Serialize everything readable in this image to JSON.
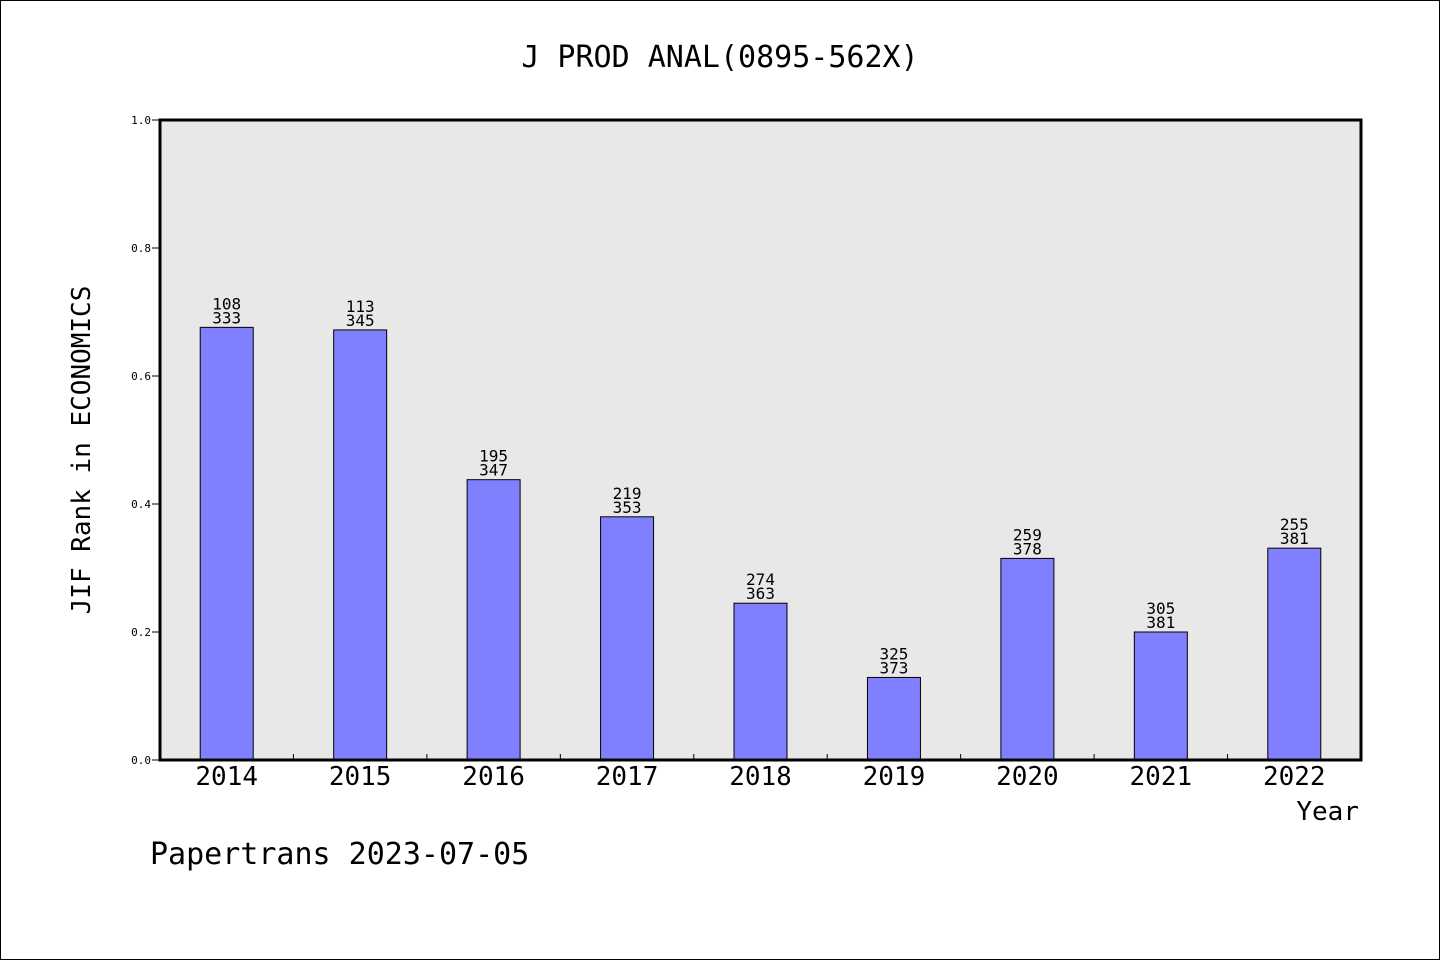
{
  "chart_data": {
    "type": "bar",
    "title": "J PROD ANAL(0895-562X)",
    "xlabel": "Year",
    "ylabel": "JIF Rank in ECONOMICS",
    "ylim": [
      0,
      1.0
    ],
    "yticks": [
      "0.0",
      "0.2",
      "0.4",
      "0.6",
      "0.8",
      "1.0"
    ],
    "categories": [
      "2014",
      "2015",
      "2016",
      "2017",
      "2018",
      "2019",
      "2020",
      "2021",
      "2022"
    ],
    "values": [
      0.676,
      0.672,
      0.438,
      0.38,
      0.245,
      0.129,
      0.315,
      0.2,
      0.331
    ],
    "rank": [
      "108",
      "113",
      "195",
      "219",
      "274",
      "325",
      "259",
      "305",
      "255"
    ],
    "total": [
      "333",
      "345",
      "347",
      "353",
      "363",
      "373",
      "378",
      "381",
      "381"
    ],
    "colors": {
      "bar": "#8080ff",
      "plot_bg": "#e8e8e8",
      "axis": "#000000"
    },
    "grid": false,
    "legend": "none"
  },
  "footer": {
    "text": "Papertrans 2023-07-05"
  }
}
